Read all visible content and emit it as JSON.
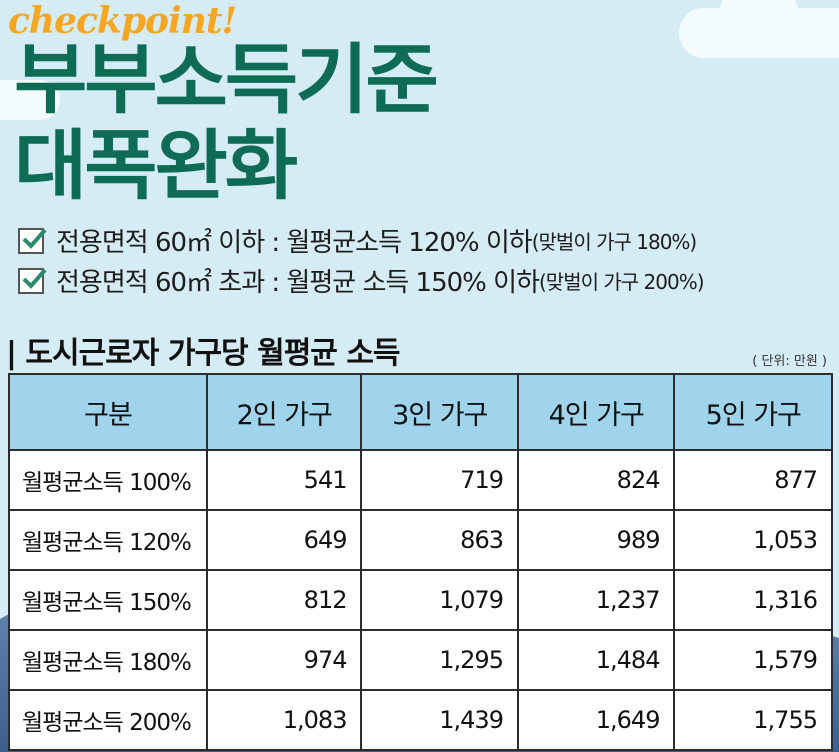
{
  "header": {
    "tagline": "checkpoint!",
    "title_line1": "부부소득기준",
    "title_line2": "대폭완화"
  },
  "conditions": [
    {
      "text": "전용면적 60㎡ 이하 : 월평균소득 120% 이하",
      "note": "(맞벌이 가구 180%)"
    },
    {
      "text": "전용면적 60㎡ 초과 : 월평균 소득 150% 이하",
      "note": "(맞벌이 가구 200%)"
    }
  ],
  "section": {
    "title": "| 도시근로자 가구당 월평균 소득",
    "unit": "( 단위: 만원 )"
  },
  "table": {
    "headers": [
      "구분",
      "2인 가구",
      "3인 가구",
      "4인 가구",
      "5인 가구"
    ],
    "rows": [
      {
        "label": "월평균소득 100%",
        "values": [
          "541",
          "719",
          "824",
          "877"
        ]
      },
      {
        "label": "월평균소득 120%",
        "values": [
          "649",
          "863",
          "989",
          "1,053"
        ]
      },
      {
        "label": "월평균소득 150%",
        "values": [
          "812",
          "1,079",
          "1,237",
          "1,316"
        ]
      },
      {
        "label": "월평균소득 180%",
        "values": [
          "974",
          "1,295",
          "1,484",
          "1,579"
        ]
      },
      {
        "label": "월평균소득 200%",
        "values": [
          "1,083",
          "1,439",
          "1,649",
          "1,755"
        ]
      }
    ]
  },
  "colors": {
    "title": "#0e6b55",
    "tagline": "#f5a623",
    "table_header_bg": "#9fd4ec",
    "background": "#d6ecf5"
  },
  "icons": [
    "checkbox-checked-icon"
  ]
}
